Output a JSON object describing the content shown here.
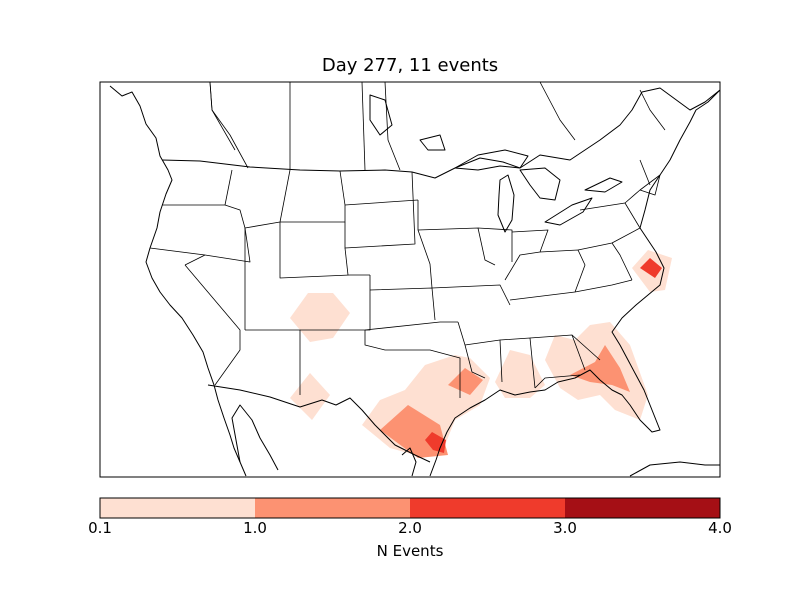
{
  "title": "Day 277, 11 events",
  "colorbar": {
    "label": "N Events",
    "bins": [
      {
        "from": "0.1",
        "to": "1.0",
        "color": "#fee0d2"
      },
      {
        "from": "1.0",
        "to": "2.0",
        "color": "#fc9272"
      },
      {
        "from": "2.0",
        "to": "3.0",
        "color": "#ef3b2c"
      },
      {
        "from": "3.0",
        "to": "4.0",
        "color": "#a50f15"
      }
    ],
    "ticks": [
      "0.1",
      "1.0",
      "2.0",
      "3.0",
      "4.0"
    ]
  },
  "map": {
    "region": "contiguous United States",
    "projection": "lambert-conformal",
    "boundaries": [
      "coastlines",
      "country-borders",
      "state-borders"
    ],
    "hotspots": [
      {
        "name": "colorado-utah",
        "level": "0.1-1.0"
      },
      {
        "name": "southern-new-mexico",
        "level": "0.1-1.0"
      },
      {
        "name": "east-texas-louisiana",
        "level": "0.1-1.0"
      },
      {
        "name": "north-louisiana",
        "level": "1.0-2.0"
      },
      {
        "name": "south-texas",
        "level": "1.0-2.0"
      },
      {
        "name": "houston-coast",
        "level": "2.0-3.0"
      },
      {
        "name": "mississippi",
        "level": "0.1-1.0"
      },
      {
        "name": "georgia-florida",
        "level": "0.1-1.0"
      },
      {
        "name": "north-florida",
        "level": "1.0-2.0"
      },
      {
        "name": "virginia-coast",
        "level": "0.1-1.0"
      },
      {
        "name": "chesapeake-bay",
        "level": "2.0-3.0"
      }
    ]
  }
}
